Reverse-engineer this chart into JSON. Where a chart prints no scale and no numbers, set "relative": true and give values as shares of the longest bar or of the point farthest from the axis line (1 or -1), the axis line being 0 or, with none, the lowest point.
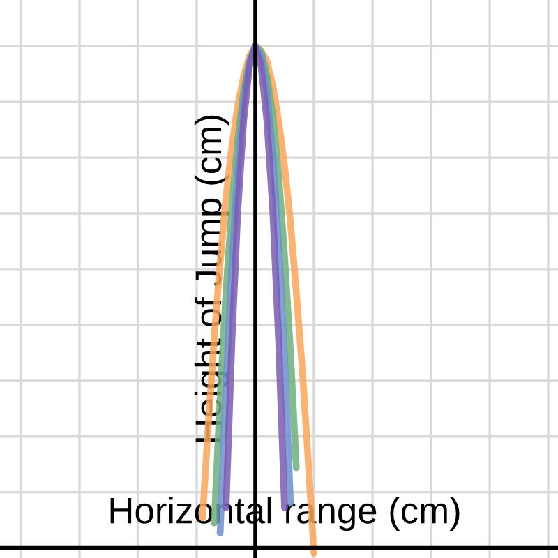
{
  "chart_data": {
    "type": "line",
    "relative": true,
    "xlabel": "Horizontal range (cm)",
    "ylabel": "Height of Jump (cm)",
    "categories": [
      null,
      null,
      null,
      null,
      null,
      null,
      null,
      null,
      null,
      null,
      null,
      null,
      null,
      null,
      null,
      null,
      null,
      null,
      null,
      null,
      null
    ],
    "grid": true,
    "marker": "none",
    "line_style": "solid",
    "series": [
      {
        "color": "#f9a65a",
        "values": [
          null,
          0.06,
          0.25,
          0.42,
          0.57,
          0.7,
          0.8,
          0.88,
          0.94,
          0.98,
          1,
          0.99,
          0.97,
          0.92,
          0.85,
          0.76,
          0.65,
          0.51,
          0.36,
          0.18,
          -0.01
        ]
      },
      {
        "color": "#6fae7b",
        "values": [
          null,
          null,
          null,
          0.05,
          0.3,
          0.51,
          0.68,
          0.81,
          0.91,
          0.97,
          1,
          0.99,
          0.94,
          0.86,
          0.74,
          0.58,
          0.39,
          0.16,
          null,
          null,
          null
        ]
      },
      {
        "color": "#6d8fce",
        "values": [
          null,
          null,
          null,
          null,
          0.03,
          0.32,
          0.56,
          0.75,
          0.89,
          0.97,
          1,
          0.98,
          0.91,
          0.78,
          0.6,
          0.38,
          0.09,
          null,
          null,
          null,
          null
        ]
      },
      {
        "color": "#7a5cb0",
        "values": [
          null,
          null,
          null,
          null,
          null,
          0.08,
          0.41,
          0.67,
          0.85,
          0.96,
          1,
          0.96,
          0.85,
          0.67,
          0.41,
          0.08,
          null,
          null,
          null,
          null,
          null
        ]
      }
    ]
  }
}
